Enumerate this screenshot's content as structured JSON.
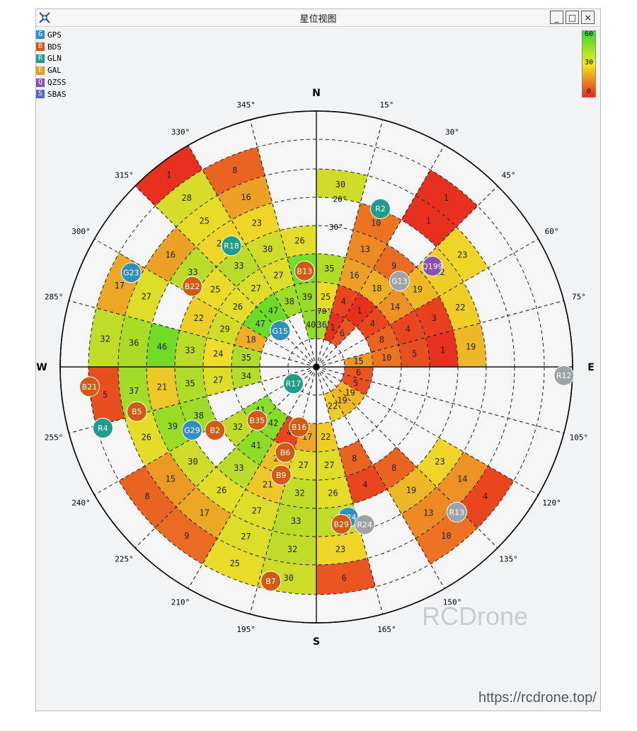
{
  "window": {
    "title": "星位视图",
    "minimize_label": "_",
    "maximize_label": "□",
    "close_label": "×"
  },
  "legend": [
    {
      "code": "G",
      "label": "GPS",
      "color": "#2f8fbf"
    },
    {
      "code": "B",
      "label": "BDS",
      "color": "#d45a13"
    },
    {
      "code": "R",
      "label": "GLN",
      "color": "#1f9c8c"
    },
    {
      "code": "E",
      "label": "GAL",
      "color": "#e59b24"
    },
    {
      "code": "Q",
      "label": "QZSS",
      "color": "#8a4fb5"
    },
    {
      "code": "S",
      "label": "SBAS",
      "color": "#5a66c4"
    }
  ],
  "scale": {
    "max": "60",
    "mid": "30",
    "min": "0"
  },
  "compass": {
    "north": "N",
    "south": "S",
    "east": "E",
    "west": "W"
  },
  "azimuth_labels": [
    "15°",
    "30°",
    "45°",
    "60°",
    "75°",
    "105°",
    "120°",
    "135°",
    "150°",
    "165°",
    "195°",
    "210°",
    "225°",
    "240°",
    "255°",
    "285°",
    "300°",
    "315°",
    "330°",
    "345°"
  ],
  "elevation_labels": [
    "20°",
    "30°",
    "70°"
  ],
  "watermark": "RCDrone",
  "url": "https://rcdrone.top/",
  "chart_data": {
    "type": "polar-skyplot",
    "cells": [
      {
        "az": 0,
        "r": 5,
        "value": 30
      },
      {
        "az": 30,
        "r": 6,
        "value": 1
      },
      {
        "az": 30,
        "r": 5,
        "value": 1
      },
      {
        "az": 45,
        "r": 5,
        "value": 23
      },
      {
        "az": 45,
        "r": 4,
        "value": 22
      },
      {
        "az": 60,
        "r": 4,
        "value": 22
      },
      {
        "az": 60,
        "r": 3,
        "value": 3
      },
      {
        "az": 75,
        "r": 4,
        "value": 19
      },
      {
        "az": 75,
        "r": 3,
        "value": 1
      },
      {
        "az": 15,
        "r": 4,
        "value": 10
      },
      {
        "az": 15,
        "r": 3,
        "value": 13
      },
      {
        "az": 15,
        "r": 2,
        "value": 16
      },
      {
        "az": 30,
        "r": 3,
        "value": 9
      },
      {
        "az": 30,
        "r": 2,
        "value": 18
      },
      {
        "az": 30,
        "r": 1,
        "value": 1
      },
      {
        "az": 45,
        "r": 3,
        "value": 19
      },
      {
        "az": 45,
        "r": 2,
        "value": 14
      },
      {
        "az": 45,
        "r": 1,
        "value": 4
      },
      {
        "az": 60,
        "r": 2,
        "value": 4
      },
      {
        "az": 60,
        "r": 1,
        "value": 8
      },
      {
        "az": 75,
        "r": 2,
        "value": 5
      },
      {
        "az": 15,
        "r": 1,
        "value": 4
      },
      {
        "az": 15,
        "r": 0,
        "value": 1
      },
      {
        "az": 30,
        "r": 0,
        "value": 6
      },
      {
        "az": 75,
        "r": 0,
        "value": 15
      },
      {
        "az": 75,
        "r": 1,
        "value": 10
      },
      {
        "az": 90,
        "r": 0,
        "value": 6
      },
      {
        "az": 105,
        "r": 0,
        "value": 5
      },
      {
        "az": 120,
        "r": 0,
        "value": 19
      },
      {
        "az": 135,
        "r": 0,
        "value": 19
      },
      {
        "az": 150,
        "r": 0,
        "value": 22
      },
      {
        "az": 120,
        "r": 4,
        "value": 23
      },
      {
        "az": 120,
        "r": 5,
        "value": 14
      },
      {
        "az": 120,
        "r": 6,
        "value": 4
      },
      {
        "az": 135,
        "r": 3,
        "value": 8
      },
      {
        "az": 135,
        "r": 4,
        "value": 19
      },
      {
        "az": 135,
        "r": 5,
        "value": 13
      },
      {
        "az": 135,
        "r": 6,
        "value": 10
      },
      {
        "az": 150,
        "r": 2,
        "value": 8
      },
      {
        "az": 150,
        "r": 3,
        "value": 4
      },
      {
        "az": 165,
        "r": 1,
        "value": 22
      },
      {
        "az": 165,
        "r": 2,
        "value": 27
      },
      {
        "az": 165,
        "r": 3,
        "value": 26
      },
      {
        "az": 165,
        "r": 4,
        "value": 32
      },
      {
        "az": 165,
        "r": 5,
        "value": 23
      },
      {
        "az": 165,
        "r": 6,
        "value": 6
      },
      {
        "az": 180,
        "r": 1,
        "value": 17
      },
      {
        "az": 180,
        "r": 2,
        "value": 27
      },
      {
        "az": 180,
        "r": 3,
        "value": 32
      },
      {
        "az": 180,
        "r": 4,
        "value": 33
      },
      {
        "az": 180,
        "r": 5,
        "value": 32
      },
      {
        "az": 180,
        "r": 6,
        "value": 30
      },
      {
        "az": 195,
        "r": 1,
        "value": 4
      },
      {
        "az": 195,
        "r": 2,
        "value": 20
      },
      {
        "az": 195,
        "r": 3,
        "value": 21
      },
      {
        "az": 195,
        "r": 4,
        "value": 27
      },
      {
        "az": 195,
        "r": 5,
        "value": 27
      },
      {
        "az": 195,
        "r": 6,
        "value": 25
      },
      {
        "az": 210,
        "r": 1,
        "value": 42
      },
      {
        "az": 210,
        "r": 2,
        "value": 41
      },
      {
        "az": 210,
        "r": 3,
        "value": 33
      },
      {
        "az": 210,
        "r": 4,
        "value": 26
      },
      {
        "az": 210,
        "r": 5,
        "value": 17
      },
      {
        "az": 210,
        "r": 6,
        "value": 9
      },
      {
        "az": 225,
        "r": 1,
        "value": 41
      },
      {
        "az": 225,
        "r": 2,
        "value": 32
      },
      {
        "az": 225,
        "r": 4,
        "value": 30
      },
      {
        "az": 225,
        "r": 5,
        "value": 15
      },
      {
        "az": 225,
        "r": 6,
        "value": 8
      },
      {
        "az": 240,
        "r": 3,
        "value": 38
      },
      {
        "az": 240,
        "r": 4,
        "value": 39
      },
      {
        "az": 240,
        "r": 5,
        "value": 26
      },
      {
        "az": 255,
        "r": 4,
        "value": 12
      },
      {
        "az": 255,
        "r": 6,
        "value": 5
      },
      {
        "az": 255,
        "r": 1,
        "value": 34
      },
      {
        "az": 255,
        "r": 2,
        "value": 27
      },
      {
        "az": 255,
        "r": 3,
        "value": 35
      },
      {
        "az": 255,
        "r": 4,
        "value": 21
      },
      {
        "az": 255,
        "r": 5,
        "value": 37
      },
      {
        "az": 270,
        "r": 1,
        "value": 35
      },
      {
        "az": 270,
        "r": 2,
        "value": 24
      },
      {
        "az": 270,
        "r": 3,
        "value": 33
      },
      {
        "az": 270,
        "r": 4,
        "value": 46
      },
      {
        "az": 270,
        "r": 5,
        "value": 36
      },
      {
        "az": 270,
        "r": 6,
        "value": 32
      },
      {
        "az": 285,
        "r": 1,
        "value": 18
      },
      {
        "az": 285,
        "r": 2,
        "value": 29
      },
      {
        "az": 285,
        "r": 3,
        "value": 22
      },
      {
        "az": 285,
        "r": 5,
        "value": 27
      },
      {
        "az": 285,
        "r": 6,
        "value": 17
      },
      {
        "az": 300,
        "r": 1,
        "value": 47
      },
      {
        "az": 300,
        "r": 2,
        "value": 26
      },
      {
        "az": 300,
        "r": 3,
        "value": 25
      },
      {
        "az": 300,
        "r": 4,
        "value": 33
      },
      {
        "az": 300,
        "r": 5,
        "value": 16
      },
      {
        "az": 315,
        "r": 1,
        "value": 47
      },
      {
        "az": 315,
        "r": 2,
        "value": 27
      },
      {
        "az": 315,
        "r": 3,
        "value": 33
      },
      {
        "az": 315,
        "r": 4,
        "value": 23
      },
      {
        "az": 315,
        "r": 5,
        "value": 25
      },
      {
        "az": 315,
        "r": 6,
        "value": 28
      },
      {
        "az": 330,
        "r": 1,
        "value": 38
      },
      {
        "az": 330,
        "r": 2,
        "value": 27
      },
      {
        "az": 330,
        "r": 3,
        "value": 30
      },
      {
        "az": 330,
        "r": 4,
        "value": 23
      },
      {
        "az": 330,
        "r": 5,
        "value": 16
      },
      {
        "az": 330,
        "r": 6,
        "value": 8
      },
      {
        "az": 345,
        "r": 0,
        "value": 40
      },
      {
        "az": 345,
        "r": 1,
        "value": 39
      },
      {
        "az": 345,
        "r": 2,
        "value": 45
      },
      {
        "az": 345,
        "r": 3,
        "value": 26
      },
      {
        "az": 315,
        "r": 7,
        "value": 1
      },
      {
        "az": 0,
        "r": 1,
        "value": 25
      },
      {
        "az": 0,
        "r": 2,
        "value": 35
      },
      {
        "az": 0,
        "r": 0,
        "value": 36
      }
    ],
    "satellites": [
      {
        "id": "R2",
        "system": "GLN",
        "az": 22,
        "el": 30
      },
      {
        "id": "G13",
        "system": "GPS",
        "az": 44,
        "el": 48,
        "grey": true
      },
      {
        "id": "Q199",
        "system": "QZSS",
        "az": 49,
        "el": 36
      },
      {
        "id": "B13",
        "system": "BDS",
        "az": 353,
        "el": 56
      },
      {
        "id": "R18",
        "system": "GLN",
        "az": 325,
        "el": 38
      },
      {
        "id": "G23",
        "system": "GPS",
        "az": 297,
        "el": 17
      },
      {
        "id": "B22",
        "system": "BDS",
        "az": 303,
        "el": 38
      },
      {
        "id": "G15",
        "system": "GPS",
        "az": 315,
        "el": 72
      },
      {
        "id": "R12",
        "system": "GLN",
        "az": 92,
        "el": 3,
        "grey": true
      },
      {
        "id": "R17",
        "system": "GLN",
        "az": 234,
        "el": 80
      },
      {
        "id": "B21",
        "system": "BDS",
        "az": 265,
        "el": 10
      },
      {
        "id": "B5",
        "system": "BDS",
        "az": 256,
        "el": 25
      },
      {
        "id": "R4",
        "system": "GLN",
        "az": 254,
        "el": 12
      },
      {
        "id": "G29",
        "system": "GPS",
        "az": 243,
        "el": 41
      },
      {
        "id": "B2",
        "system": "BDS",
        "az": 238,
        "el": 48
      },
      {
        "id": "B35",
        "system": "BDS",
        "az": 228,
        "el": 62
      },
      {
        "id": "B16",
        "system": "BDS",
        "az": 196,
        "el": 68
      },
      {
        "id": "B6",
        "system": "BDS",
        "az": 200,
        "el": 58
      },
      {
        "id": "B9",
        "system": "BDS",
        "az": 198,
        "el": 50
      },
      {
        "id": "G24",
        "system": "GPS",
        "az": 168,
        "el": 36
      },
      {
        "id": "R24",
        "system": "GLN",
        "az": 163,
        "el": 32,
        "grey": true
      },
      {
        "id": "B29",
        "system": "BDS",
        "az": 171,
        "el": 34
      },
      {
        "id": "R13",
        "system": "GLN",
        "az": 136,
        "el": 19,
        "grey": true
      },
      {
        "id": "B7",
        "system": "BDS",
        "az": 192,
        "el": 13
      }
    ]
  }
}
